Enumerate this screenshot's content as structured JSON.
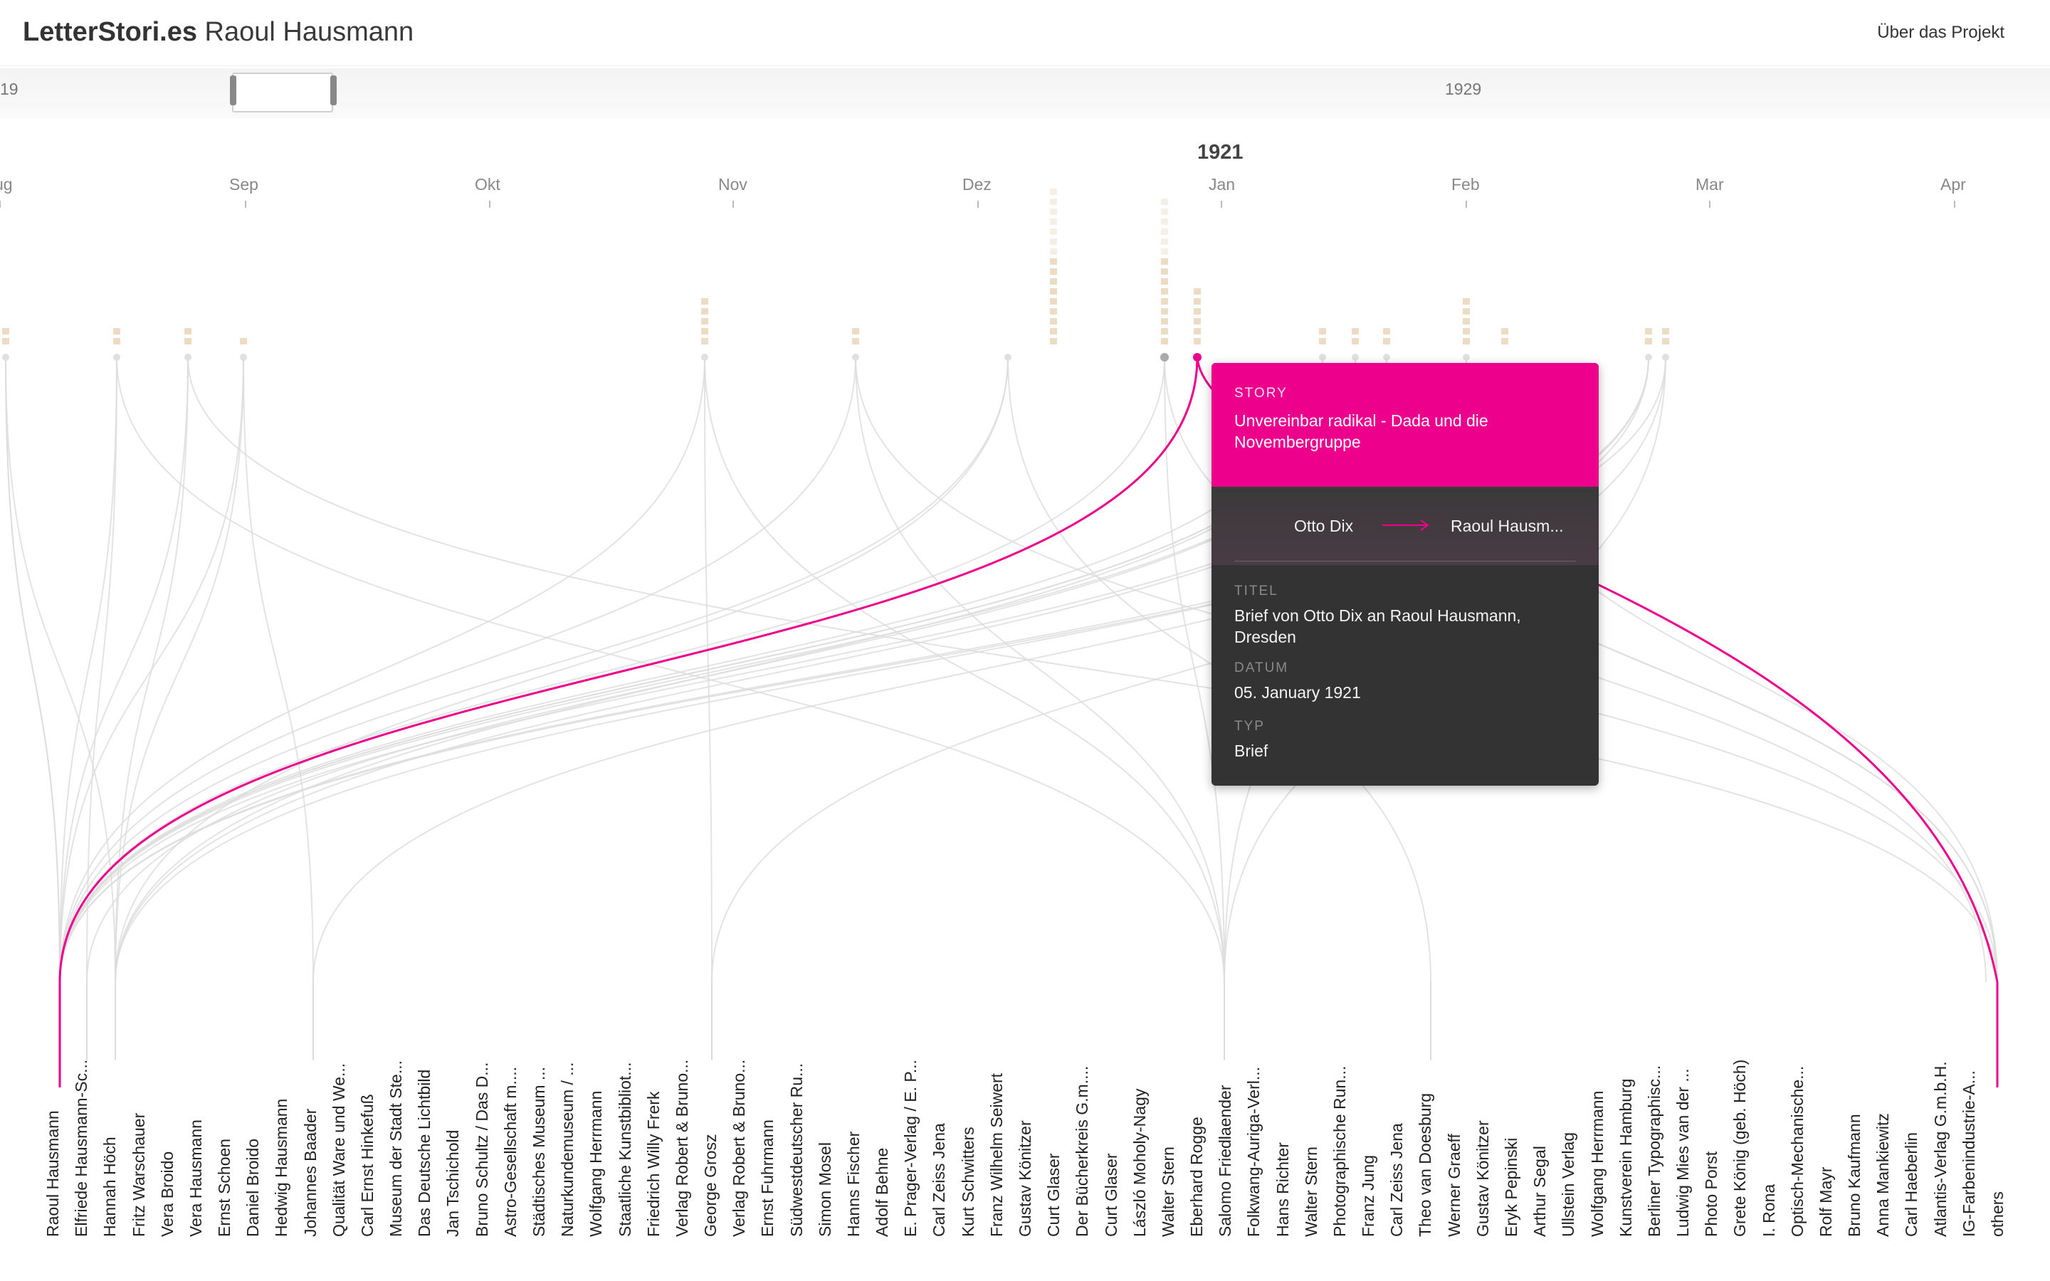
{
  "header": {
    "brand": "LetterStori.es",
    "person": "Raoul Hausmann",
    "about_label": "Über das Projekt"
  },
  "timeline": {
    "years": [
      "19",
      "1929"
    ],
    "current_year": "1921",
    "months": [
      "ug",
      "Sep",
      "Okt",
      "Nov",
      "Dez",
      "Jan",
      "Feb",
      "Mar",
      "Apr"
    ]
  },
  "colors": {
    "accent": "#ec008c",
    "tooltip_bg": "#333333",
    "dot": "#ecdcc4",
    "line": "#dedede"
  },
  "names": [
    "Raoul Hausmann",
    "Elfriede Hausmann-Sc...",
    "Hannah Höch",
    "Fritz Warschauer",
    "Vera Broido",
    "Vera Hausmann",
    "Ernst Schoen",
    "Daniel Broido",
    "Hedwig Hausmann",
    "Johannes Baader",
    "Qualität Ware und We...",
    "Carl Ernst Hinkefuß",
    "Museum der Stadt Ste...",
    "Das Deutsche Lichtbild",
    "Jan Tschichold",
    "Bruno Schultz / Das D...",
    "Astro-Gesellschaft m....",
    "Städtisches Museum ...",
    "Naturkundemuseum / ...",
    "Wolfgang Herrmann",
    "Staatliche Kunstbibliot...",
    "Friedrich Willy Frerk",
    "Verlag Robert & Bruno...",
    "George Grosz",
    "Verlag Robert & Bruno...",
    "Ernst Fuhrmann",
    "Südwestdeutscher Ru...",
    "Simon Mosel",
    "Hanns Fischer",
    "Adolf Behne",
    "E. Prager-Verlag / E. P...",
    "Carl Zeiss Jena",
    "Kurt Schwitters",
    "Franz Wilhelm Seiwert",
    "Gustav Könitzer",
    "Curt Glaser",
    "Der Bücherkreis G.m....",
    "Curt Glaser",
    "László Moholy-Nagy",
    "Walter Stern",
    "Eberhard Rogge",
    "Salomo Friedlaender",
    "Folkwang-Auriga-Verl...",
    "Hans Richter",
    "Walter Stern",
    "Photographische Run...",
    "Franz Jung",
    "Carl Zeiss Jena",
    "Theo van Doesburg",
    "Werner Graeff",
    "Gustav Könitzer",
    "Eryk Pepinski",
    "Arthur Segal",
    "Ullstein Verlag",
    "Wolfgang Herrmann",
    "Kunstverein Hamburg",
    "Berliner Typographisc...",
    "Ludwig Mies van der ...",
    "Photo Porst",
    "Grete König (geb. Höch)",
    "I. Rona",
    "Optisch-Mechanische...",
    "Rolf Mayr",
    "Bruno Kaufmann",
    "Anna Mankiewitz",
    "Carl Haeberlin",
    "Atlantis-Verlag G.m.b.H.",
    "IG-Farbenindustrie-A...",
    "others"
  ],
  "tooltip": {
    "story_label": "STORY",
    "story_title": "Unvereinbar radikal - Dada und die Novembergruppe",
    "from": "Otto Dix",
    "to": "Raoul Hausm...",
    "title_label": "TITEL",
    "title_value": "Brief von Otto Dix an Raoul Hausmann, Dresden",
    "date_label": "DATUM",
    "date_value": "05. January 1921",
    "type_label": "TYP",
    "type_value": "Brief"
  }
}
